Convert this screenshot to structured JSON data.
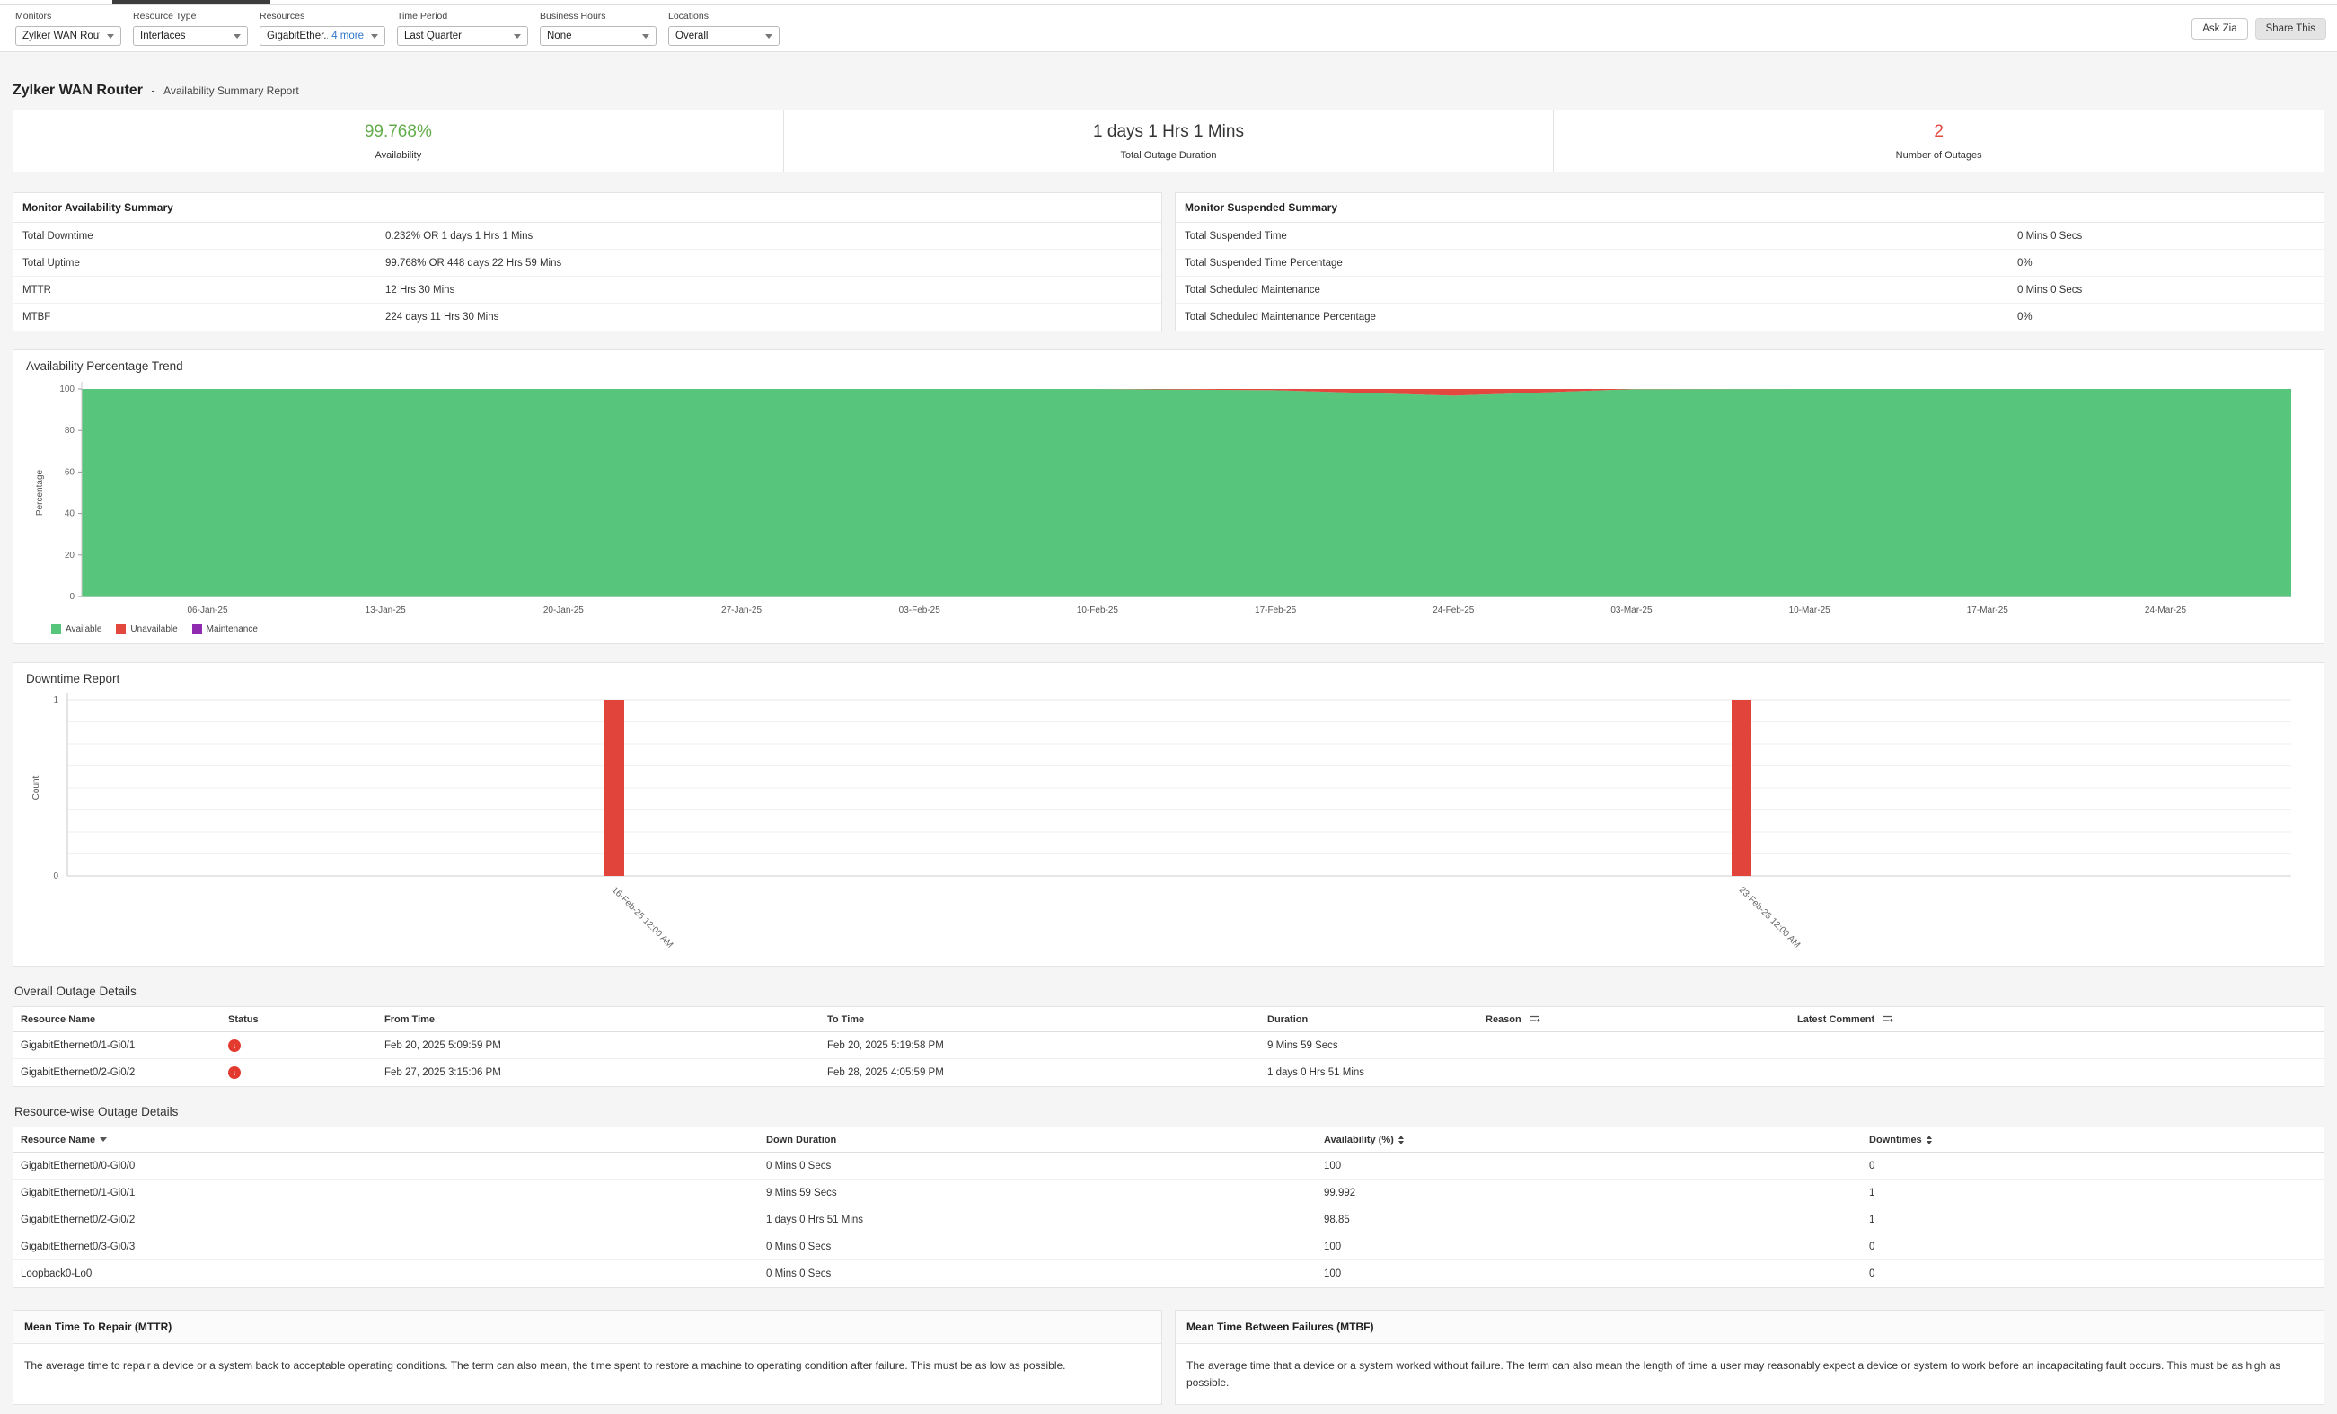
{
  "topbar": {
    "filters": [
      {
        "label": "Monitors",
        "value": "Zylker WAN Router"
      },
      {
        "label": "Resource Type",
        "value": "Interfaces"
      },
      {
        "label": "Resources",
        "value": "GigabitEther...",
        "extra": "4 more"
      },
      {
        "label": "Time Period",
        "value": "Last Quarter"
      },
      {
        "label": "Business Hours",
        "value": "None"
      },
      {
        "label": "Locations",
        "value": "Overall"
      }
    ],
    "actions": {
      "ask_zia": "Ask Zia",
      "share_this": "Share This"
    }
  },
  "report": {
    "monitor_name": "Zylker WAN Router",
    "separator": "-",
    "report_type": "Availability Summary Report"
  },
  "summary_cards": [
    {
      "value": "99.768%",
      "label": "Availability",
      "color": "#64ad4d"
    },
    {
      "value": "1 days 1 Hrs 1 Mins",
      "label": "Total Outage Duration",
      "color": "#333333"
    },
    {
      "value": "2",
      "label": "Number of Outages",
      "color": "#e2483d"
    }
  ],
  "availability_summary": {
    "title": "Monitor Availability Summary",
    "rows": [
      {
        "label": "Total Downtime",
        "value": "0.232% OR 1 days 1 Hrs 1 Mins"
      },
      {
        "label": "Total Uptime",
        "value": "99.768% OR 448 days 22 Hrs 59 Mins"
      },
      {
        "label": "MTTR",
        "value": "12 Hrs 30 Mins"
      },
      {
        "label": "MTBF",
        "value": "224 days 11 Hrs 30 Mins"
      }
    ]
  },
  "suspended_summary": {
    "title": "Monitor Suspended Summary",
    "rows": [
      {
        "label": "Total Suspended Time",
        "value": "0 Mins 0 Secs"
      },
      {
        "label": "Total Suspended Time Percentage",
        "value": "0%"
      },
      {
        "label": "Total Scheduled Maintenance",
        "value": "0 Mins 0 Secs"
      },
      {
        "label": "Total Scheduled Maintenance Percentage",
        "value": "0%"
      }
    ]
  },
  "chart_data": [
    {
      "type": "area",
      "title": "Availability Percentage Trend",
      "xlabel": "",
      "ylabel": "Percentage",
      "ylim": [
        0,
        100
      ],
      "yticks": [
        0,
        20,
        40,
        60,
        80,
        100
      ],
      "grid": false,
      "legend_position": "bottom-left",
      "categories": [
        "06-Jan-25",
        "13-Jan-25",
        "20-Jan-25",
        "27-Jan-25",
        "03-Feb-25",
        "10-Feb-25",
        "17-Feb-25",
        "24-Feb-25",
        "03-Mar-25",
        "10-Mar-25",
        "17-Mar-25",
        "24-Mar-25"
      ],
      "series": [
        {
          "name": "Available",
          "color": "#58c57c",
          "values": [
            100,
            100,
            100,
            100,
            100,
            100,
            99.4,
            96.8,
            99.9,
            100,
            100,
            100
          ]
        },
        {
          "name": "Unavailable",
          "color": "#e2483d",
          "values": [
            0,
            0,
            0,
            0,
            0,
            0,
            0.6,
            3.2,
            0.1,
            0,
            0,
            0
          ]
        },
        {
          "name": "Maintenance",
          "color": "#8e2baf",
          "values": [
            0,
            0,
            0,
            0,
            0,
            0,
            0,
            0,
            0,
            0,
            0,
            0
          ]
        }
      ]
    },
    {
      "type": "bar",
      "title": "Downtime Report",
      "xlabel": "",
      "ylabel": "Count",
      "ylim": [
        0,
        1
      ],
      "yticks": [
        0,
        1
      ],
      "grid": true,
      "bar_color": "#e0443a",
      "categories": [
        "16-Feb-25 12:00 AM",
        "23-Feb-25 12:00 AM"
      ],
      "values": [
        1,
        1
      ]
    }
  ],
  "outage_details": {
    "title": "Overall Outage Details",
    "columns": [
      "Resource Name",
      "Status",
      "From Time",
      "To Time",
      "Duration",
      "Reason",
      "Latest Comment"
    ],
    "rows": [
      {
        "resource": "GigabitEthernet0/1-Gi0/1",
        "status": "down",
        "from": "Feb 20, 2025 5:09:59 PM",
        "to": "Feb 20, 2025 5:19:58 PM",
        "duration": "9 Mins 59 Secs",
        "reason": "",
        "comment": ""
      },
      {
        "resource": "GigabitEthernet0/2-Gi0/2",
        "status": "down",
        "from": "Feb 27, 2025 3:15:06 PM",
        "to": "Feb 28, 2025 4:05:59 PM",
        "duration": "1 days 0 Hrs 51 Mins",
        "reason": "",
        "comment": ""
      }
    ]
  },
  "resource_outage": {
    "title": "Resource-wise Outage Details",
    "columns": [
      "Resource Name",
      "Down Duration",
      "Availability (%)",
      "Downtimes"
    ],
    "rows": [
      {
        "resource": "GigabitEthernet0/0-Gi0/0",
        "down_duration": "0 Mins 0 Secs",
        "availability": "100",
        "downtimes": "0"
      },
      {
        "resource": "GigabitEthernet0/1-Gi0/1",
        "down_duration": "9 Mins 59 Secs",
        "availability": "99.992",
        "downtimes": "1"
      },
      {
        "resource": "GigabitEthernet0/2-Gi0/2",
        "down_duration": "1 days 0 Hrs 51 Mins",
        "availability": "98.85",
        "downtimes": "1"
      },
      {
        "resource": "GigabitEthernet0/3-Gi0/3",
        "down_duration": "0 Mins 0 Secs",
        "availability": "100",
        "downtimes": "0"
      },
      {
        "resource": "Loopback0-Lo0",
        "down_duration": "0 Mins 0 Secs",
        "availability": "100",
        "downtimes": "0"
      }
    ]
  },
  "mttr": {
    "title": "Mean Time To Repair (MTTR)",
    "body": "The average time to repair a device or a system back to acceptable operating conditions. The term can also mean, the time spent to restore a machine to operating condition after failure. This must be as low as possible."
  },
  "mtbf": {
    "title": "Mean Time Between Failures (MTBF)",
    "body": "The average time that a device or a system worked without failure. The term can also mean the length of time a user may reasonably expect a device or system to work before an incapacitating fault occurs. This must be as high as possible."
  }
}
